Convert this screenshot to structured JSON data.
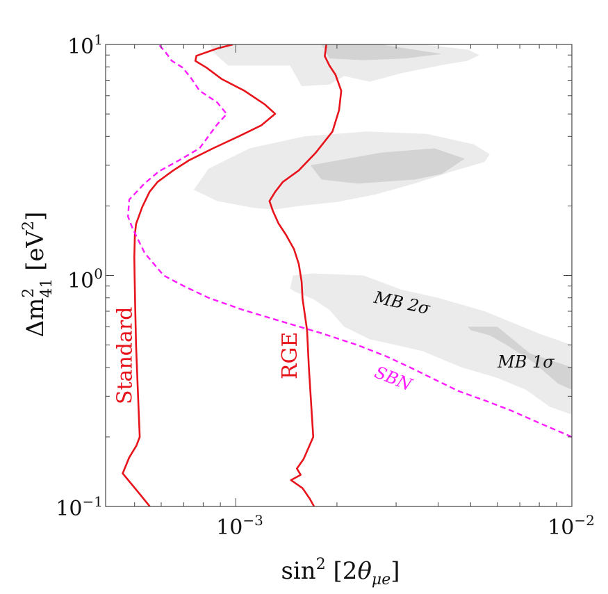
{
  "chart_data": {
    "type": "line",
    "title": "",
    "xlabel": {
      "main": "sin",
      "sup": "2",
      "bracket_open": " [2",
      "theta": "θ",
      "sub": "μe",
      "bracket_close": "]"
    },
    "ylabel": {
      "main": "Δm",
      "sup": "2",
      "sub": "41",
      "unit": " [eV",
      "unit_sup": "2",
      "unit_close": "]"
    },
    "x_scale": "log",
    "y_scale": "log",
    "xlim": [
      0.00041,
      0.01
    ],
    "ylim": [
      0.1,
      10
    ],
    "x_ticks": [
      {
        "value": 0.001,
        "base": "10",
        "exp": "−3"
      },
      {
        "value": 0.01,
        "base": "10",
        "exp": "−2"
      }
    ],
    "y_ticks": [
      {
        "value": 0.1,
        "base": "10",
        "exp": "−1"
      },
      {
        "value": 1,
        "base": "10",
        "exp": "0"
      },
      {
        "value": 10,
        "base": "10",
        "exp": "1"
      }
    ],
    "series": [
      {
        "name": "Standard",
        "color": "#e8141c",
        "style": "solid",
        "points": [
          [
            0.000555,
            0.1
          ],
          [
            0.000521,
            0.112
          ],
          [
            0.000461,
            0.139
          ],
          [
            0.000482,
            0.163
          ],
          [
            0.000506,
            0.183
          ],
          [
            0.000518,
            0.2
          ],
          [
            0.000512,
            0.3
          ],
          [
            0.000505,
            0.5
          ],
          [
            0.000502,
            0.75
          ],
          [
            0.0005,
            1.0
          ],
          [
            0.000499,
            1.2
          ],
          [
            0.000501,
            1.5
          ],
          [
            0.000505,
            1.67
          ],
          [
            0.000527,
            1.98
          ],
          [
            0.000554,
            2.3
          ],
          [
            0.000585,
            2.54
          ],
          [
            0.000652,
            2.85
          ],
          [
            0.000728,
            3.16
          ],
          [
            0.000856,
            3.55
          ],
          [
            0.00102,
            4.0
          ],
          [
            0.00119,
            4.46
          ],
          [
            0.00131,
            5.01
          ],
          [
            0.00122,
            5.5
          ],
          [
            0.00106,
            6.31
          ],
          [
            0.000909,
            7.08
          ],
          [
            0.000818,
            7.94
          ],
          [
            0.000758,
            8.49
          ],
          [
            0.000764,
            8.93
          ],
          [
            0.00088,
            9.6
          ],
          [
            0.00098,
            10.0
          ]
        ]
      },
      {
        "name": "RGE",
        "color": "#e8141c",
        "style": "solid",
        "points": [
          [
            0.00171,
            0.1
          ],
          [
            0.00166,
            0.108
          ],
          [
            0.00158,
            0.12
          ],
          [
            0.00146,
            0.13
          ],
          [
            0.00156,
            0.137
          ],
          [
            0.00152,
            0.146
          ],
          [
            0.00159,
            0.16
          ],
          [
            0.00162,
            0.17
          ],
          [
            0.0017,
            0.2
          ],
          [
            0.00165,
            0.4
          ],
          [
            0.00163,
            0.58
          ],
          [
            0.00158,
            0.794
          ],
          [
            0.00157,
            0.94
          ],
          [
            0.00154,
            1.12
          ],
          [
            0.00149,
            1.3
          ],
          [
            0.00141,
            1.5
          ],
          [
            0.00134,
            1.68
          ],
          [
            0.00129,
            1.9
          ],
          [
            0.00126,
            2.1
          ],
          [
            0.00131,
            2.3
          ],
          [
            0.00138,
            2.54
          ],
          [
            0.00154,
            2.85
          ],
          [
            0.00173,
            3.4
          ],
          [
            0.00194,
            4.2
          ],
          [
            0.00203,
            5.2
          ],
          [
            0.00206,
            6.3
          ],
          [
            0.00198,
            7.4
          ],
          [
            0.0019,
            8.1
          ],
          [
            0.00184,
            8.9
          ],
          [
            0.00186,
            10.0
          ]
        ]
      },
      {
        "name": "SBN",
        "color": "#ff1aff",
        "style": "dashed",
        "points": [
          [
            0.01,
            0.2
          ],
          [
            0.00805,
            0.229
          ],
          [
            0.0066,
            0.26
          ],
          [
            0.0055,
            0.288
          ],
          [
            0.0046,
            0.316
          ],
          [
            0.0039,
            0.355
          ],
          [
            0.0033,
            0.4
          ],
          [
            0.0028,
            0.447
          ],
          [
            0.0023,
            0.5
          ],
          [
            0.0018,
            0.562
          ],
          [
            0.00138,
            0.63
          ],
          [
            0.00105,
            0.71
          ],
          [
            0.00083,
            0.8
          ],
          [
            0.0007,
            0.9
          ],
          [
            0.00061,
            1.0
          ],
          [
            0.000536,
            1.25
          ],
          [
            0.000493,
            1.6
          ],
          [
            0.000478,
            1.8
          ],
          [
            0.000482,
            2.13
          ],
          [
            0.000535,
            2.5
          ],
          [
            0.00059,
            2.82
          ],
          [
            0.00068,
            3.16
          ],
          [
            0.00078,
            3.55
          ],
          [
            0.00088,
            4.5
          ],
          [
            0.00094,
            5.0
          ],
          [
            0.00088,
            5.62
          ],
          [
            0.00078,
            6.31
          ],
          [
            0.00074,
            7.08
          ],
          [
            0.000695,
            7.94
          ],
          [
            0.000645,
            8.5
          ],
          [
            0.00062,
            9.2
          ],
          [
            0.00059,
            10.0
          ]
        ]
      }
    ],
    "regions": [
      {
        "name": "MB 2σ region (top)",
        "color": "#ebebeb",
        "points": [
          [
            0.00084,
            10.0
          ],
          [
            0.0036,
            10.0
          ],
          [
            0.0049,
            9.5
          ],
          [
            0.0053,
            9.0
          ],
          [
            0.0049,
            8.5
          ],
          [
            0.0042,
            8.2
          ],
          [
            0.0031,
            7.5
          ],
          [
            0.0025,
            6.9
          ],
          [
            0.0021,
            7.3
          ],
          [
            0.0019,
            6.7
          ],
          [
            0.00157,
            6.6
          ],
          [
            0.00145,
            8.1
          ],
          [
            0.0012,
            8.1
          ],
          [
            0.00095,
            8.1
          ],
          [
            0.00086,
            9.2
          ]
        ]
      },
      {
        "name": "MB 2σ region (middle)",
        "color": "#ebebeb",
        "points": [
          [
            0.00083,
            2.9
          ],
          [
            0.0011,
            3.55
          ],
          [
            0.0016,
            4.0
          ],
          [
            0.00245,
            4.2
          ],
          [
            0.0037,
            4.1
          ],
          [
            0.0051,
            3.7
          ],
          [
            0.0057,
            3.35
          ],
          [
            0.0055,
            3.1
          ],
          [
            0.0044,
            2.82
          ],
          [
            0.0034,
            2.5
          ],
          [
            0.0026,
            2.24
          ],
          [
            0.002,
            2.08
          ],
          [
            0.00155,
            2.0
          ],
          [
            0.0013,
            1.93
          ],
          [
            0.00113,
            1.96
          ],
          [
            0.00088,
            2.1
          ],
          [
            0.00075,
            2.35
          ]
        ]
      },
      {
        "name": "MB 2σ region (lower band)",
        "color": "#ebebeb",
        "points": [
          [
            0.00145,
            0.88
          ],
          [
            0.00148,
            1.0
          ],
          [
            0.0017,
            1.02
          ],
          [
            0.0024,
            1.0
          ],
          [
            0.0031,
            0.87
          ],
          [
            0.004,
            0.8
          ],
          [
            0.0055,
            0.7
          ],
          [
            0.008,
            0.56
          ],
          [
            0.01,
            0.5
          ],
          [
            0.01,
            0.25
          ],
          [
            0.0086,
            0.27
          ],
          [
            0.0073,
            0.32
          ],
          [
            0.006,
            0.36
          ],
          [
            0.0047,
            0.4
          ],
          [
            0.0036,
            0.47
          ],
          [
            0.003,
            0.5
          ],
          [
            0.0025,
            0.53
          ],
          [
            0.0021,
            0.6
          ],
          [
            0.0019,
            0.71
          ],
          [
            0.0017,
            0.79
          ],
          [
            0.0015,
            0.85
          ]
        ]
      },
      {
        "name": "MB 1σ region (top)",
        "color": "#d3d3d3",
        "points": [
          [
            0.0018,
            10.0
          ],
          [
            0.0027,
            10.0
          ],
          [
            0.0041,
            9.1
          ],
          [
            0.0032,
            8.7
          ],
          [
            0.0024,
            8.55
          ],
          [
            0.0019,
            8.7
          ]
        ]
      },
      {
        "name": "MB 1σ region (middle)",
        "color": "#d3d3d3",
        "points": [
          [
            0.00167,
            3.0
          ],
          [
            0.0027,
            3.4
          ],
          [
            0.0039,
            3.55
          ],
          [
            0.0048,
            3.2
          ],
          [
            0.0041,
            2.75
          ],
          [
            0.0034,
            2.6
          ],
          [
            0.0023,
            2.5
          ],
          [
            0.0018,
            2.6
          ]
        ]
      },
      {
        "name": "MB 1σ region (lower)",
        "color": "#d3d3d3",
        "points": [
          [
            0.0049,
            0.6
          ],
          [
            0.006,
            0.6
          ],
          [
            0.0075,
            0.46
          ],
          [
            0.01,
            0.4
          ],
          [
            0.01,
            0.32
          ],
          [
            0.0091,
            0.34
          ],
          [
            0.0077,
            0.42
          ],
          [
            0.0064,
            0.5
          ],
          [
            0.0057,
            0.55
          ],
          [
            0.005,
            0.58
          ]
        ]
      }
    ],
    "annotations": [
      {
        "text": "Standard",
        "color": "#e8141c",
        "x": 0.00049,
        "y": 0.45,
        "rotate": -90,
        "size": 30,
        "italic": false
      },
      {
        "text": "RGE",
        "color": "#e8141c",
        "x": 0.00152,
        "y": 0.45,
        "rotate": -90,
        "size": 30,
        "italic": false
      },
      {
        "text": "SBN",
        "color": "#ff1aff",
        "x": 0.0029,
        "y": 0.34,
        "rotate": 22,
        "size": 24,
        "italic": true
      },
      {
        "text": "MB 2σ",
        "color": "#111111",
        "x": 0.0031,
        "y": 0.72,
        "rotate": 12,
        "size": 24,
        "italic": true
      },
      {
        "text": "MB 1σ",
        "color": "#111111",
        "x": 0.0073,
        "y": 0.4,
        "rotate": 0,
        "size": 24,
        "italic": true
      }
    ]
  }
}
